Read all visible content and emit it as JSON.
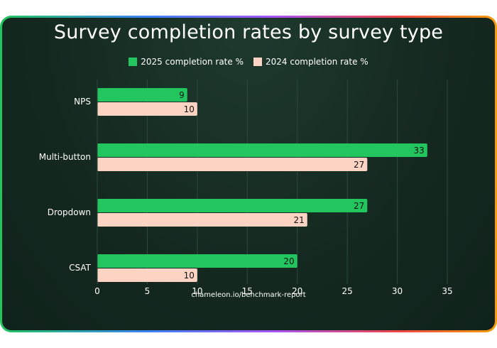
{
  "chart_data": {
    "type": "bar",
    "orientation": "horizontal",
    "title": "Survey completion rates by survey type",
    "categories": [
      "NPS",
      "Multi-button",
      "Dropdown",
      "CSAT"
    ],
    "series": [
      {
        "name": "2025 completion rate %",
        "values": [
          9,
          33,
          27,
          20
        ],
        "color": "#22c55e"
      },
      {
        "name": "2024 completion rate %",
        "values": [
          10,
          27,
          21,
          10
        ],
        "color": "#fdd3c4"
      }
    ],
    "xlim": [
      0,
      35
    ],
    "xticks": [
      0,
      5,
      10,
      15,
      20,
      25,
      30,
      35
    ],
    "grid": true,
    "legend": "top-center",
    "source": "chameleon.io/benchmark-report"
  }
}
